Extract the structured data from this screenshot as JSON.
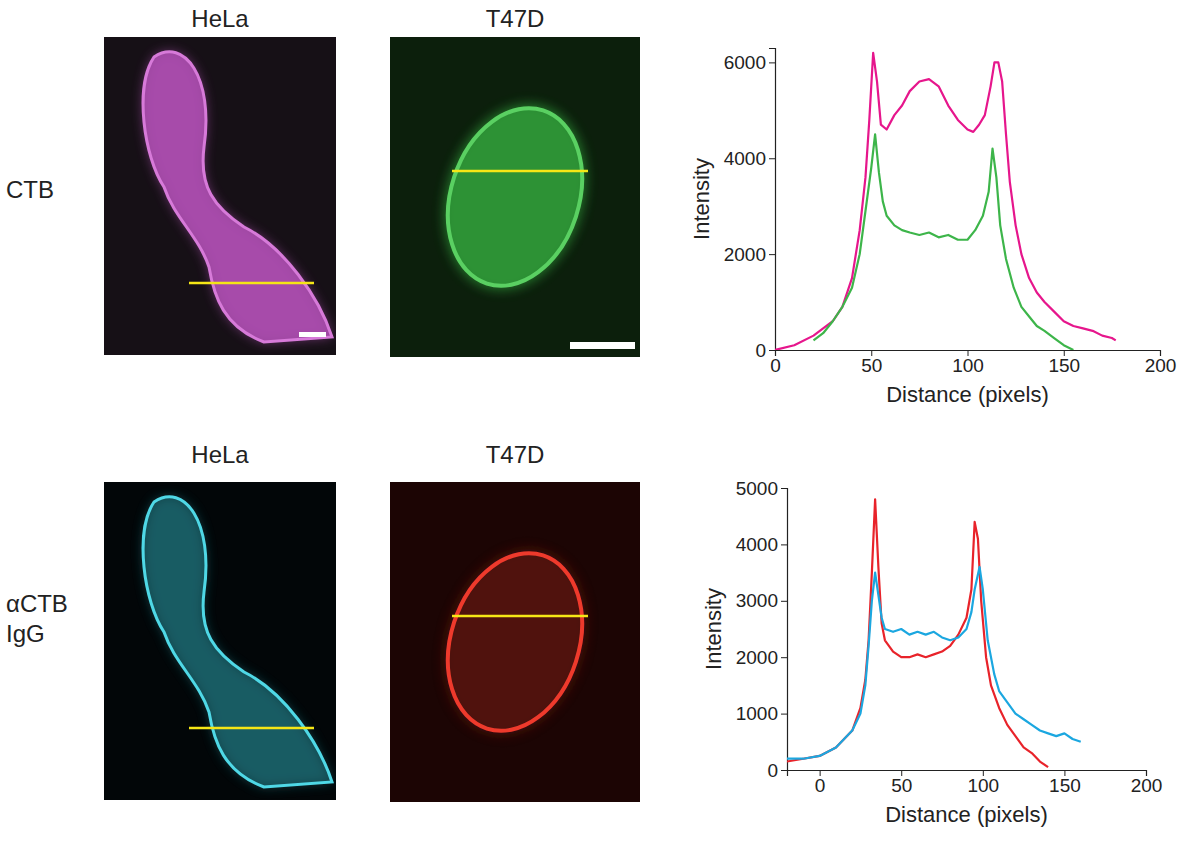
{
  "image_rows": [
    {
      "label": "CTB",
      "columns": [
        "HeLa",
        "T47D"
      ]
    },
    {
      "label": "αCTB IgG",
      "columns": [
        "HeLa",
        "T47D"
      ]
    }
  ],
  "chart_data": [
    {
      "type": "line",
      "x_label": "Distance (pixels)",
      "y_label": "Intensity",
      "xlim": [
        0,
        200
      ],
      "xticks": [
        0,
        50,
        100,
        150,
        200
      ],
      "ylim": [
        0,
        6300
      ],
      "yticks": [
        0,
        2000,
        4000,
        6000
      ],
      "series": [
        {
          "color": "#e6168c",
          "x": [
            0,
            10,
            20,
            30,
            35,
            40,
            44,
            47,
            49,
            51,
            53,
            55,
            58,
            62,
            66,
            70,
            75,
            80,
            85,
            90,
            95,
            100,
            103,
            106,
            109,
            112,
            114,
            116,
            118,
            120,
            122,
            125,
            128,
            132,
            136,
            140,
            145,
            150,
            155,
            160,
            165,
            170,
            175,
            177
          ],
          "values": [
            0,
            100,
            300,
            600,
            900,
            1500,
            2500,
            3600,
            4800,
            6200,
            5600,
            4700,
            4600,
            4900,
            5100,
            5400,
            5600,
            5650,
            5500,
            5100,
            4800,
            4600,
            4550,
            4700,
            4900,
            5500,
            6000,
            6000,
            5600,
            4500,
            3500,
            2600,
            2000,
            1500,
            1200,
            1000,
            800,
            600,
            500,
            450,
            400,
            300,
            250,
            200
          ]
        },
        {
          "color": "#3db54a",
          "x": [
            20,
            25,
            30,
            35,
            40,
            44,
            47,
            50,
            52,
            54,
            56,
            58,
            62,
            66,
            70,
            75,
            80,
            85,
            90,
            95,
            100,
            104,
            108,
            111,
            113,
            115,
            117,
            120,
            124,
            128,
            132,
            136,
            140,
            145,
            150,
            155
          ],
          "values": [
            200,
            350,
            600,
            900,
            1300,
            2000,
            2900,
            3800,
            4500,
            3700,
            3100,
            2800,
            2600,
            2500,
            2450,
            2400,
            2450,
            2350,
            2400,
            2300,
            2300,
            2500,
            2800,
            3300,
            4200,
            3600,
            2600,
            1900,
            1300,
            900,
            700,
            500,
            400,
            250,
            100,
            0
          ]
        }
      ]
    },
    {
      "type": "line",
      "x_label": "Distance (pixels)",
      "y_label": "Intensity",
      "xlim": [
        -20,
        200
      ],
      "xticks": [
        0,
        50,
        100,
        150,
        200
      ],
      "ylim": [
        0,
        5000
      ],
      "yticks": [
        0,
        1000,
        2000,
        3000,
        4000,
        5000
      ],
      "series": [
        {
          "color": "#e8232a",
          "x": [
            -20,
            -10,
            0,
            10,
            20,
            25,
            28,
            30,
            32,
            34,
            36,
            38,
            40,
            45,
            50,
            55,
            60,
            65,
            70,
            75,
            80,
            85,
            90,
            93,
            95,
            97,
            99,
            102,
            105,
            110,
            115,
            120,
            125,
            130,
            135,
            140
          ],
          "values": [
            150,
            200,
            250,
            400,
            700,
            1100,
            1600,
            2300,
            3500,
            4800,
            3600,
            2600,
            2300,
            2100,
            2000,
            2000,
            2050,
            2000,
            2050,
            2100,
            2200,
            2400,
            2700,
            3200,
            4400,
            4100,
            3000,
            2000,
            1500,
            1100,
            800,
            600,
            400,
            300,
            150,
            50
          ]
        },
        {
          "color": "#1ba7e0",
          "x": [
            -20,
            -10,
            0,
            10,
            20,
            25,
            28,
            30,
            32,
            34,
            36,
            38,
            40,
            45,
            50,
            55,
            60,
            65,
            70,
            75,
            80,
            85,
            90,
            93,
            95,
            98,
            100,
            103,
            107,
            110,
            115,
            120,
            125,
            130,
            135,
            140,
            145,
            150,
            155,
            160
          ],
          "values": [
            200,
            200,
            250,
            400,
            700,
            1000,
            1500,
            2200,
            3000,
            3500,
            3100,
            2700,
            2500,
            2450,
            2500,
            2400,
            2450,
            2400,
            2450,
            2350,
            2300,
            2350,
            2500,
            2800,
            3200,
            3600,
            3200,
            2300,
            1700,
            1400,
            1200,
            1000,
            900,
            800,
            700,
            650,
            600,
            650,
            550,
            500
          ]
        }
      ]
    }
  ]
}
